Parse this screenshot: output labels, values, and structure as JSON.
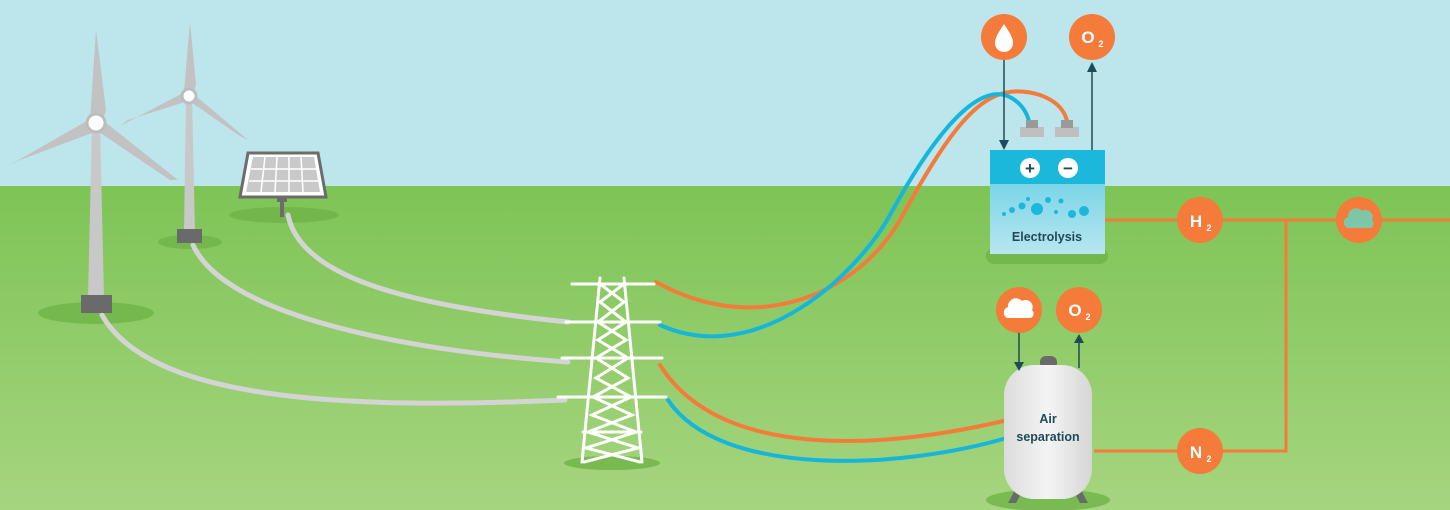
{
  "colors": {
    "sky": "#bce5ec",
    "grass_top": "#7fc657",
    "grass_bottom": "#a3d47b",
    "orange": "#f47b3a",
    "cyan": "#14b6d9",
    "gray_cable": "#d2d2d2",
    "dark_line": "#1e4b57"
  },
  "labels": {
    "electrolysis": "Electrolysis",
    "air_separation_line1": "Air",
    "air_separation_line2": "separation"
  },
  "badges": {
    "water_icon": "water-drop-icon",
    "cloud_icon": "cloud-icon",
    "oxygen_letter": "O",
    "oxygen_sub": "2",
    "hydrogen_letter": "H",
    "hydrogen_sub": "2",
    "nitrogen_letter": "N",
    "nitrogen_sub": "2"
  },
  "terminals": {
    "plus": "+",
    "minus": "−"
  }
}
